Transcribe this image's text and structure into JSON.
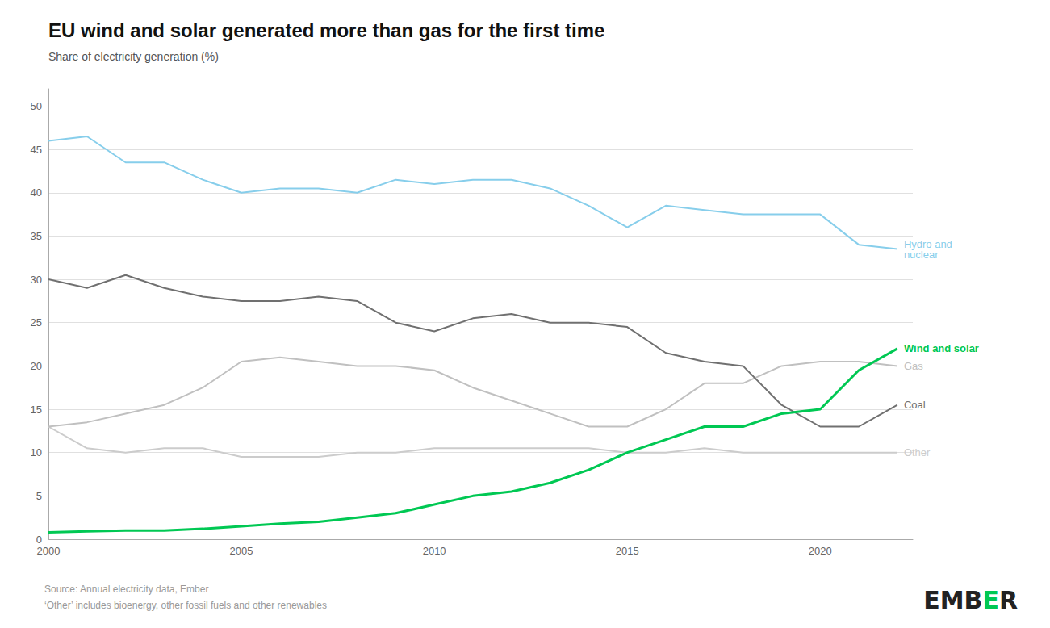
{
  "chart_data": {
    "type": "line",
    "title": "EU wind and solar generated more than gas for the first time",
    "subtitle": "Share of electricity generation (%)",
    "x": [
      2000,
      2001,
      2002,
      2003,
      2004,
      2005,
      2006,
      2007,
      2008,
      2009,
      2010,
      2011,
      2012,
      2013,
      2014,
      2015,
      2016,
      2017,
      2018,
      2019,
      2020,
      2021,
      2022
    ],
    "xlim": [
      2000,
      2022.4
    ],
    "xticks": [
      2000,
      2005,
      2010,
      2015,
      2020
    ],
    "ylim": [
      0,
      52
    ],
    "yticks": [
      0,
      5,
      10,
      15,
      20,
      25,
      30,
      35,
      40,
      45,
      50
    ],
    "grid": true,
    "series": [
      {
        "name": "Other",
        "color": "#cccccc",
        "values": [
          13.0,
          10.5,
          10.0,
          10.5,
          10.5,
          9.5,
          9.5,
          9.5,
          10.0,
          10.0,
          10.5,
          10.5,
          10.5,
          10.5,
          10.5,
          10.0,
          10.0,
          10.5,
          10.0,
          10.0,
          10.0,
          10.0,
          10.0
        ]
      },
      {
        "name": "Gas",
        "color": "#c0c0c0",
        "values": [
          13.0,
          13.5,
          14.5,
          15.5,
          17.5,
          20.5,
          21.0,
          20.5,
          20.0,
          20.0,
          19.5,
          17.5,
          16.0,
          14.5,
          13.0,
          13.0,
          15.0,
          18.0,
          18.0,
          20.0,
          20.5,
          20.5,
          20.0
        ]
      },
      {
        "name": "Coal",
        "color": "#707070",
        "values": [
          30.0,
          29.0,
          30.5,
          29.0,
          28.0,
          27.5,
          27.5,
          28.0,
          27.5,
          25.0,
          24.0,
          25.5,
          26.0,
          25.0,
          25.0,
          24.5,
          21.5,
          20.5,
          20.0,
          15.5,
          13.0,
          13.0,
          15.5
        ]
      },
      {
        "name": "Hydro and\nnuclear",
        "color": "#87ceeb",
        "values": [
          46.0,
          46.5,
          43.5,
          43.5,
          41.5,
          40.0,
          40.5,
          40.5,
          40.0,
          41.5,
          41.0,
          41.5,
          41.5,
          40.5,
          38.5,
          36.0,
          38.5,
          38.0,
          37.5,
          37.5,
          37.5,
          34.0,
          33.5
        ]
      },
      {
        "name": "Wind and solar",
        "color": "#00c853",
        "values": [
          0.8,
          0.9,
          1.0,
          1.0,
          1.2,
          1.5,
          1.8,
          2.0,
          2.5,
          3.0,
          4.0,
          5.0,
          5.5,
          6.5,
          8.0,
          10.0,
          11.5,
          13.0,
          13.0,
          14.5,
          15.0,
          19.5,
          22.0
        ]
      }
    ],
    "annotations": [
      "Source: Annual electricity data, Ember",
      "‘Other’ includes bioenergy, other fossil fuels and other renewables",
      "EMBER"
    ]
  }
}
